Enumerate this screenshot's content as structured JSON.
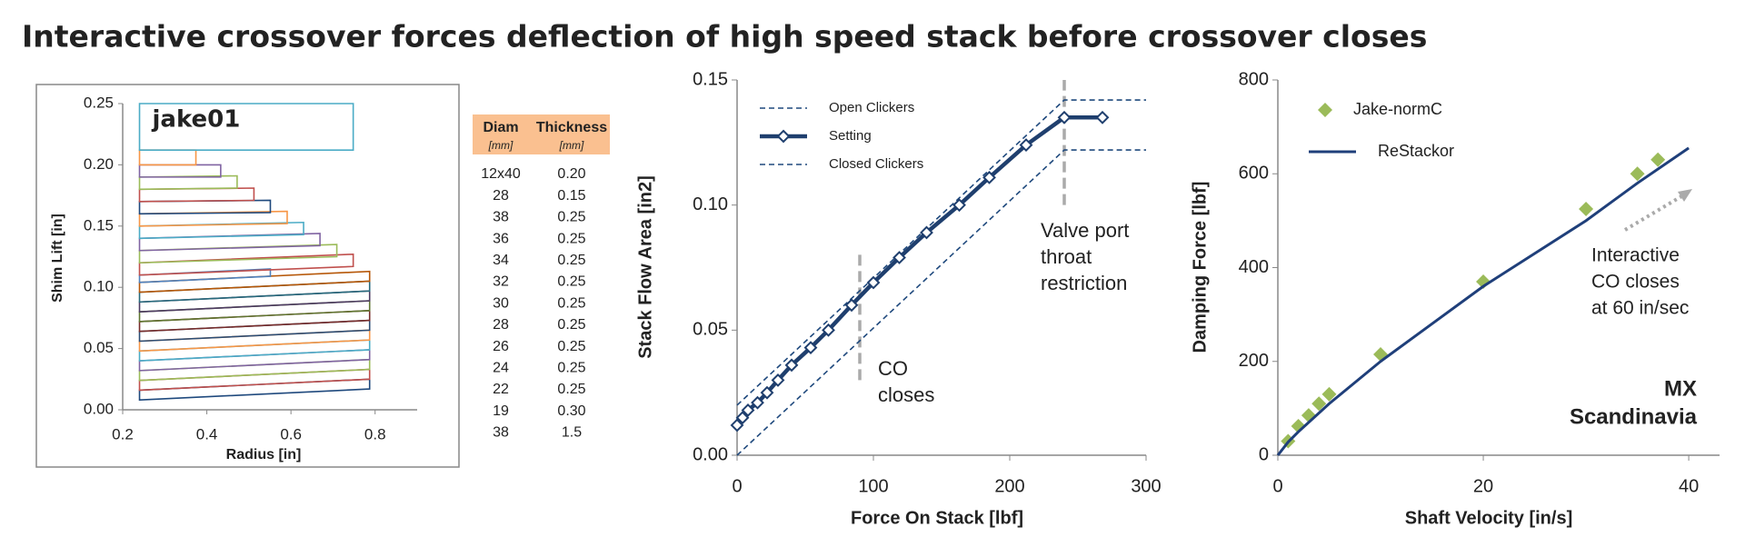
{
  "title": "Interactive crossover forces deflection of high speed stack before crossover closes",
  "table": {
    "header": [
      "Diam",
      "Thickness"
    ],
    "units": [
      "[mm]",
      "[mm]"
    ],
    "rows": [
      [
        "12x40",
        "0.20"
      ],
      [
        "28",
        "0.15"
      ],
      [
        "38",
        "0.25"
      ],
      [
        "36",
        "0.25"
      ],
      [
        "34",
        "0.25"
      ],
      [
        "32",
        "0.25"
      ],
      [
        "30",
        "0.25"
      ],
      [
        "28",
        "0.25"
      ],
      [
        "26",
        "0.25"
      ],
      [
        "24",
        "0.25"
      ],
      [
        "22",
        "0.25"
      ],
      [
        "19",
        "0.30"
      ],
      [
        "38",
        "1.5"
      ]
    ]
  },
  "chart_data": [
    {
      "type": "shim",
      "label": "jake01",
      "xlabel": "Radius [in]",
      "ylabel": "Shim Lift [in]",
      "xlim": [
        0.2,
        0.9
      ],
      "xticks": [
        0.2,
        0.4,
        0.6,
        0.8
      ],
      "ylim": [
        0,
        0.25
      ],
      "yticks": [
        {
          "value": 0,
          "label": "0.00"
        },
        0.05,
        {
          "value": 0.1,
          "label": "0.10"
        },
        0.15,
        {
          "value": 0.2,
          "label": "0.20"
        },
        0.25
      ],
      "series": [
        {
          "color": "#1f497d",
          "x": [
            0.24,
            0.787,
            0.787,
            0.24
          ],
          "values": [
            0.008,
            0.017,
            0.025,
            0.016
          ]
        },
        {
          "color": "#c0504d",
          "x": [
            0.24,
            0.787,
            0.787,
            0.24
          ],
          "values": [
            0.016,
            0.025,
            0.033,
            0.024
          ]
        },
        {
          "color": "#9bbb59",
          "x": [
            0.24,
            0.787,
            0.787,
            0.24
          ],
          "values": [
            0.024,
            0.033,
            0.041,
            0.032
          ]
        },
        {
          "color": "#8064a2",
          "x": [
            0.24,
            0.787,
            0.787,
            0.24
          ],
          "values": [
            0.032,
            0.041,
            0.049,
            0.04
          ]
        },
        {
          "color": "#4bacc6",
          "x": [
            0.24,
            0.787,
            0.787,
            0.24
          ],
          "values": [
            0.04,
            0.049,
            0.057,
            0.048
          ]
        },
        {
          "color": "#f79646",
          "x": [
            0.24,
            0.787,
            0.787,
            0.24
          ],
          "values": [
            0.048,
            0.057,
            0.065,
            0.056
          ]
        },
        {
          "color": "#2c4d75",
          "x": [
            0.24,
            0.787,
            0.787,
            0.24
          ],
          "values": [
            0.056,
            0.065,
            0.073,
            0.064
          ]
        },
        {
          "color": "#772c2a",
          "x": [
            0.24,
            0.787,
            0.787,
            0.24
          ],
          "values": [
            0.064,
            0.073,
            0.081,
            0.072
          ]
        },
        {
          "color": "#5f7530",
          "x": [
            0.24,
            0.787,
            0.787,
            0.24
          ],
          "values": [
            0.072,
            0.081,
            0.089,
            0.08
          ]
        },
        {
          "color": "#4d3b62",
          "x": [
            0.24,
            0.787,
            0.787,
            0.24
          ],
          "values": [
            0.08,
            0.089,
            0.097,
            0.088
          ]
        },
        {
          "color": "#276a7c",
          "x": [
            0.24,
            0.787,
            0.787,
            0.24
          ],
          "values": [
            0.088,
            0.097,
            0.105,
            0.096
          ]
        },
        {
          "color": "#b65708",
          "x": [
            0.24,
            0.787,
            0.787,
            0.24
          ],
          "values": [
            0.096,
            0.105,
            0.113,
            0.104
          ]
        },
        {
          "color": "#4f81bd",
          "x": [
            0.24,
            0.551,
            0.551,
            0.24
          ],
          "values": [
            0.104,
            0.109,
            0.115,
            0.11
          ]
        },
        {
          "color": "#c0504d",
          "x": [
            0.24,
            0.748,
            0.748,
            0.24
          ],
          "values": [
            0.11,
            0.117,
            0.127,
            0.12
          ]
        },
        {
          "color": "#9bbb59",
          "x": [
            0.24,
            0.709,
            0.709,
            0.24
          ],
          "values": [
            0.12,
            0.125,
            0.135,
            0.13
          ]
        },
        {
          "color": "#8064a2",
          "x": [
            0.24,
            0.669,
            0.669,
            0.24
          ],
          "values": [
            0.13,
            0.134,
            0.144,
            0.14
          ]
        },
        {
          "color": "#4bacc6",
          "x": [
            0.24,
            0.63,
            0.63,
            0.24
          ],
          "values": [
            0.14,
            0.143,
            0.153,
            0.15
          ]
        },
        {
          "color": "#f79646",
          "x": [
            0.24,
            0.591,
            0.591,
            0.24
          ],
          "values": [
            0.15,
            0.152,
            0.162,
            0.16
          ]
        },
        {
          "color": "#1f497d",
          "x": [
            0.24,
            0.551,
            0.551,
            0.24
          ],
          "values": [
            0.16,
            0.161,
            0.171,
            0.17
          ]
        },
        {
          "color": "#c0504d",
          "x": [
            0.24,
            0.512,
            0.512,
            0.24
          ],
          "values": [
            0.17,
            0.171,
            0.181,
            0.18
          ]
        },
        {
          "color": "#9bbb59",
          "x": [
            0.24,
            0.472,
            0.472,
            0.24
          ],
          "values": [
            0.18,
            0.181,
            0.191,
            0.19
          ]
        },
        {
          "color": "#8064a2",
          "x": [
            0.24,
            0.433,
            0.433,
            0.24
          ],
          "values": [
            0.19,
            0.19,
            0.2,
            0.2
          ]
        },
        {
          "color": "#f79646",
          "x": [
            0.24,
            0.374,
            0.374,
            0.24
          ],
          "values": [
            0.2,
            0.2,
            0.212,
            0.212
          ]
        },
        {
          "color": "#4bacc6",
          "x": [
            0.24,
            0.748,
            0.748,
            0.24
          ],
          "values": [
            0.212,
            0.212,
            0.25,
            0.25
          ]
        }
      ]
    },
    {
      "type": "line",
      "xlabel": "Force On Stack [lbf]",
      "ylabel": "Stack Flow Area [in2]",
      "xlim": [
        0,
        300
      ],
      "xticks": [
        0,
        100,
        200,
        300
      ],
      "ylim": [
        0,
        0.15
      ],
      "yticks": [
        {
          "value": 0,
          "label": "0.00"
        },
        0.05,
        {
          "value": 0.1,
          "label": "0.10"
        },
        0.15
      ],
      "series": [
        {
          "name": "Open Clickers",
          "color": "#1f497d",
          "style": "dashed",
          "x": [
            0,
            240,
            300
          ],
          "values": [
            0.02,
            0.142,
            0.142
          ]
        },
        {
          "name": "Setting",
          "color": "#1f3f6e",
          "style": "line-markers",
          "x": [
            0,
            4,
            8,
            15,
            22,
            30,
            40,
            54,
            67,
            84,
            100,
            119,
            139,
            163,
            185,
            212,
            240,
            268
          ],
          "values": [
            0.012,
            0.015,
            0.018,
            0.021,
            0.025,
            0.03,
            0.036,
            0.043,
            0.05,
            0.06,
            0.069,
            0.079,
            0.089,
            0.1,
            0.111,
            0.124,
            0.135,
            0.135
          ]
        },
        {
          "name": "Closed Clickers",
          "color": "#1f497d",
          "style": "dashed",
          "x": [
            0,
            240,
            300
          ],
          "values": [
            0.0,
            0.122,
            0.122
          ]
        }
      ],
      "vlines": [
        {
          "x": 90,
          "y": [
            0.03,
            0.082
          ]
        },
        {
          "x": 240,
          "y": [
            0.1,
            0.15
          ]
        }
      ],
      "annotations": [
        [
          "CO",
          "closes"
        ],
        [
          "Valve port",
          "throat",
          "restriction"
        ]
      ]
    },
    {
      "type": "line",
      "xlabel": "Shaft Velocity [in/s]",
      "ylabel": "Damping Force [lbf]",
      "xlim": [
        0,
        43
      ],
      "xticks": [
        0,
        20,
        40
      ],
      "ylim": [
        0,
        800
      ],
      "yticks": [
        0,
        200,
        400,
        600,
        800
      ],
      "series": [
        {
          "name": "Jake-normC",
          "color": "#9bbb59",
          "style": "squares",
          "x": [
            1,
            2,
            3,
            4,
            5,
            10,
            20,
            30,
            35,
            37
          ],
          "values": [
            30,
            62,
            85,
            110,
            130,
            215,
            370,
            525,
            600,
            630
          ]
        },
        {
          "name": "ReStackor",
          "color": "#1f3f7a",
          "style": "line",
          "x": [
            0,
            1,
            2,
            5,
            10,
            15,
            20,
            25,
            30,
            35,
            40
          ],
          "values": [
            0,
            28,
            50,
            110,
            200,
            280,
            360,
            430,
            500,
            580,
            655
          ]
        }
      ],
      "annotations": [
        [
          "Interactive",
          "CO closes",
          "at 60 in/sec"
        ],
        [
          "MX",
          "Scandinavia"
        ]
      ]
    }
  ]
}
